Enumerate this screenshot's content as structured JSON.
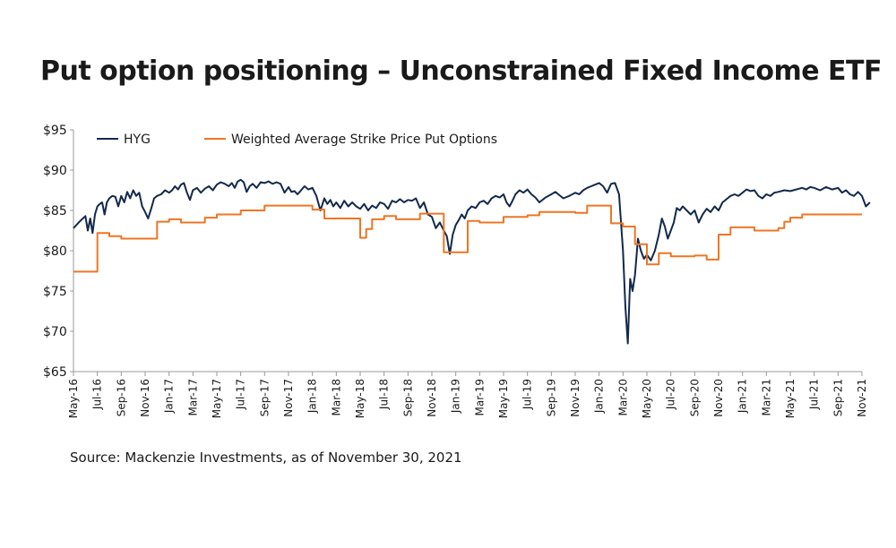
{
  "title": "Put option positioning – Unconstrained Fixed Income ETF",
  "source": "Source: Mackenzie Investments, as of November 30, 2021",
  "chart_data": {
    "type": "line",
    "title": "Put option positioning – Unconstrained Fixed Income ETF",
    "xlabel": "",
    "ylabel": "",
    "ylim": [
      65,
      95
    ],
    "y_ticks": [
      "$95",
      "$90",
      "$85",
      "$80",
      "$75",
      "$70",
      "$65"
    ],
    "y_tick_values": [
      95,
      90,
      85,
      80,
      75,
      70,
      65
    ],
    "x_ticks": [
      "May-16",
      "Jul-16",
      "Sep-16",
      "Nov-16",
      "Jan-17",
      "Mar-17",
      "May-17",
      "Jul-17",
      "Sep-17",
      "Nov-17",
      "Jan-18",
      "Mar-18",
      "May-18",
      "Jul-18",
      "Sep-18",
      "Nov-18",
      "Jan-19",
      "Mar-19",
      "May-19",
      "Jul-19",
      "Sep-19",
      "Nov-19",
      "Jan-20",
      "Mar-20",
      "May-20",
      "Jul-20",
      "Sep-20",
      "Nov-20",
      "Jan-21",
      "Mar-21",
      "May-21",
      "Jul-21",
      "Sep-21",
      "Nov-21"
    ],
    "legend_position": "top-left",
    "grid": false,
    "colors": {
      "HYG": "#13294b",
      "Weighted Average Strike Price Put Options": "#ee7623"
    },
    "series": [
      {
        "name": "HYG",
        "style": "line",
        "points": [
          [
            "May-16",
            82.8
          ],
          [
            "May-16",
            83.6
          ],
          [
            "Jun-16",
            84.3
          ],
          [
            "Jun-16",
            82.5
          ],
          [
            "Jun-16",
            84.0
          ],
          [
            "Jun-16",
            82.2
          ],
          [
            "Jun-16",
            84.5
          ],
          [
            "Jul-16",
            85.5
          ],
          [
            "Jul-16",
            85.8
          ],
          [
            "Jul-16",
            86.0
          ],
          [
            "Jul-16",
            84.5
          ],
          [
            "Jul-16",
            86.0
          ],
          [
            "Aug-16",
            86.5
          ],
          [
            "Aug-16",
            86.8
          ],
          [
            "Aug-16",
            86.7
          ],
          [
            "Aug-16",
            85.5
          ],
          [
            "Sep-16",
            86.8
          ],
          [
            "Sep-16",
            86.0
          ],
          [
            "Sep-16",
            87.3
          ],
          [
            "Sep-16",
            86.5
          ],
          [
            "Oct-16",
            87.5
          ],
          [
            "Oct-16",
            86.8
          ],
          [
            "Oct-16",
            87.2
          ],
          [
            "Oct-16",
            85.5
          ],
          [
            "Nov-16",
            84.8
          ],
          [
            "Nov-16",
            84.0
          ],
          [
            "Nov-16",
            85.2
          ],
          [
            "Nov-16",
            86.5
          ],
          [
            "Dec-16",
            86.8
          ],
          [
            "Dec-16",
            87.0
          ],
          [
            "Dec-16",
            87.5
          ],
          [
            "Jan-17",
            87.2
          ],
          [
            "Jan-17",
            87.5
          ],
          [
            "Jan-17",
            88.0
          ],
          [
            "Jan-17",
            87.6
          ],
          [
            "Feb-17",
            88.2
          ],
          [
            "Feb-17",
            88.4
          ],
          [
            "Feb-17",
            87.2
          ],
          [
            "Feb-17",
            86.3
          ],
          [
            "Mar-17",
            87.5
          ],
          [
            "Mar-17",
            87.8
          ],
          [
            "Mar-17",
            87.2
          ],
          [
            "Apr-17",
            87.7
          ],
          [
            "Apr-17",
            88.0
          ],
          [
            "Apr-17",
            87.5
          ],
          [
            "May-17",
            88.2
          ],
          [
            "May-17",
            88.5
          ],
          [
            "May-17",
            88.3
          ],
          [
            "Jun-17",
            88.0
          ],
          [
            "Jun-17",
            88.4
          ],
          [
            "Jun-17",
            87.8
          ],
          [
            "Jun-17",
            88.6
          ],
          [
            "Jul-17",
            88.8
          ],
          [
            "Jul-17",
            88.5
          ],
          [
            "Jul-17",
            87.3
          ],
          [
            "Jul-17",
            88.0
          ],
          [
            "Aug-17",
            88.3
          ],
          [
            "Aug-17",
            87.8
          ],
          [
            "Aug-17",
            88.5
          ],
          [
            "Sep-17",
            88.4
          ],
          [
            "Sep-17",
            88.6
          ],
          [
            "Sep-17",
            88.3
          ],
          [
            "Oct-17",
            88.5
          ],
          [
            "Oct-17",
            88.3
          ],
          [
            "Oct-17",
            87.2
          ],
          [
            "Nov-17",
            87.9
          ],
          [
            "Nov-17",
            87.3
          ],
          [
            "Nov-17",
            87.4
          ],
          [
            "Nov-17",
            87.0
          ],
          [
            "Dec-17",
            87.4
          ],
          [
            "Dec-17",
            88.0
          ],
          [
            "Dec-17",
            87.6
          ],
          [
            "Jan-18",
            87.8
          ],
          [
            "Jan-18",
            86.8
          ],
          [
            "Jan-18",
            85.0
          ],
          [
            "Feb-18",
            86.5
          ],
          [
            "Feb-18",
            85.8
          ],
          [
            "Feb-18",
            86.3
          ],
          [
            "Feb-18",
            85.5
          ],
          [
            "Mar-18",
            86.0
          ],
          [
            "Mar-18",
            85.3
          ],
          [
            "Mar-18",
            86.2
          ],
          [
            "Apr-18",
            85.5
          ],
          [
            "Apr-18",
            86.0
          ],
          [
            "Apr-18",
            85.5
          ],
          [
            "May-18",
            85.2
          ],
          [
            "May-18",
            85.8
          ],
          [
            "May-18",
            85.0
          ],
          [
            "Jun-18",
            85.6
          ],
          [
            "Jun-18",
            85.3
          ],
          [
            "Jun-18",
            86.0
          ],
          [
            "Jul-18",
            85.8
          ],
          [
            "Jul-18",
            85.2
          ],
          [
            "Jul-18",
            86.2
          ],
          [
            "Aug-18",
            86.0
          ],
          [
            "Aug-18",
            86.4
          ],
          [
            "Aug-18",
            86.0
          ],
          [
            "Sep-18",
            86.3
          ],
          [
            "Sep-18",
            86.2
          ],
          [
            "Sep-18",
            86.5
          ],
          [
            "Oct-18",
            85.3
          ],
          [
            "Oct-18",
            86.0
          ],
          [
            "Oct-18",
            84.5
          ],
          [
            "Nov-18",
            84.2
          ],
          [
            "Nov-18",
            82.8
          ],
          [
            "Nov-18",
            83.5
          ],
          [
            "Dec-18",
            82.5
          ],
          [
            "Dec-18",
            81.8
          ],
          [
            "Dec-18",
            79.6
          ],
          [
            "Dec-18",
            82.0
          ],
          [
            "Jan-19",
            83.2
          ],
          [
            "Jan-19",
            83.8
          ],
          [
            "Jan-19",
            84.5
          ],
          [
            "Jan-19",
            84.0
          ],
          [
            "Feb-19",
            85.0
          ],
          [
            "Feb-19",
            85.5
          ],
          [
            "Feb-19",
            85.3
          ],
          [
            "Mar-19",
            86.0
          ],
          [
            "Mar-19",
            86.2
          ],
          [
            "Mar-19",
            85.8
          ],
          [
            "Apr-19",
            86.5
          ],
          [
            "Apr-19",
            86.8
          ],
          [
            "Apr-19",
            86.6
          ],
          [
            "May-19",
            87.0
          ],
          [
            "May-19",
            86.0
          ],
          [
            "May-19",
            85.5
          ],
          [
            "May-19",
            86.2
          ],
          [
            "Jun-19",
            87.0
          ],
          [
            "Jun-19",
            87.5
          ],
          [
            "Jun-19",
            87.2
          ],
          [
            "Jul-19",
            87.6
          ],
          [
            "Jul-19",
            87.0
          ],
          [
            "Jul-19",
            86.6
          ],
          [
            "Aug-19",
            86.0
          ],
          [
            "Aug-19",
            86.6
          ],
          [
            "Sep-19",
            87.0
          ],
          [
            "Sep-19",
            87.3
          ],
          [
            "Sep-19",
            86.9
          ],
          [
            "Oct-19",
            86.5
          ],
          [
            "Oct-19",
            86.8
          ],
          [
            "Nov-19",
            87.2
          ],
          [
            "Nov-19",
            87.0
          ],
          [
            "Nov-19",
            87.5
          ],
          [
            "Dec-19",
            87.8
          ],
          [
            "Dec-19",
            88.0
          ],
          [
            "Dec-19",
            88.2
          ],
          [
            "Jan-20",
            88.4
          ],
          [
            "Jan-20",
            88.0
          ],
          [
            "Jan-20",
            87.2
          ],
          [
            "Feb-20",
            88.3
          ],
          [
            "Feb-20",
            88.4
          ],
          [
            "Feb-20",
            87.0
          ],
          [
            "Mar-20",
            80.0
          ],
          [
            "Mar-20",
            73.0
          ],
          [
            "Mar-20",
            68.5
          ],
          [
            "Mar-20",
            76.5
          ],
          [
            "Mar-20",
            75.0
          ],
          [
            "Apr-20",
            77.0
          ],
          [
            "Apr-20",
            81.5
          ],
          [
            "Apr-20",
            80.0
          ],
          [
            "Apr-20",
            79.0
          ],
          [
            "May-20",
            79.5
          ],
          [
            "May-20",
            78.8
          ],
          [
            "May-20",
            80.0
          ],
          [
            "Jun-20",
            82.0
          ],
          [
            "Jun-20",
            84.0
          ],
          [
            "Jun-20",
            83.0
          ],
          [
            "Jun-20",
            81.5
          ],
          [
            "Jul-20",
            82.5
          ],
          [
            "Jul-20",
            83.5
          ],
          [
            "Jul-20",
            85.3
          ],
          [
            "Jul-20",
            85.0
          ],
          [
            "Aug-20",
            85.5
          ],
          [
            "Aug-20",
            85.0
          ],
          [
            "Aug-20",
            84.5
          ],
          [
            "Sep-20",
            85.0
          ],
          [
            "Sep-20",
            83.5
          ],
          [
            "Sep-20",
            84.5
          ],
          [
            "Oct-20",
            85.2
          ],
          [
            "Oct-20",
            84.8
          ],
          [
            "Oct-20",
            85.5
          ],
          [
            "Nov-20",
            85.0
          ],
          [
            "Nov-20",
            86.0
          ],
          [
            "Nov-20",
            86.4
          ],
          [
            "Dec-20",
            86.8
          ],
          [
            "Dec-20",
            87.0
          ],
          [
            "Dec-20",
            86.8
          ],
          [
            "Jan-21",
            87.2
          ],
          [
            "Jan-21",
            87.6
          ],
          [
            "Jan-21",
            87.4
          ],
          [
            "Feb-21",
            87.5
          ],
          [
            "Feb-21",
            86.8
          ],
          [
            "Feb-21",
            86.5
          ],
          [
            "Mar-21",
            87.0
          ],
          [
            "Mar-21",
            86.8
          ],
          [
            "Mar-21",
            87.2
          ],
          [
            "Apr-21",
            87.3
          ],
          [
            "Apr-21",
            87.5
          ],
          [
            "May-21",
            87.4
          ],
          [
            "May-21",
            87.6
          ],
          [
            "Jun-21",
            87.8
          ],
          [
            "Jun-21",
            87.6
          ],
          [
            "Jun-21",
            87.9
          ],
          [
            "Jul-21",
            87.8
          ],
          [
            "Jul-21",
            87.5
          ],
          [
            "Aug-21",
            87.9
          ],
          [
            "Aug-21",
            87.6
          ],
          [
            "Sep-21",
            87.8
          ],
          [
            "Sep-21",
            87.2
          ],
          [
            "Sep-21",
            87.5
          ],
          [
            "Oct-21",
            87.0
          ],
          [
            "Oct-21",
            86.8
          ],
          [
            "Oct-21",
            87.3
          ],
          [
            "Nov-21",
            86.8
          ],
          [
            "Nov-21",
            85.5
          ],
          [
            "Nov-21",
            86.0
          ]
        ]
      },
      {
        "name": "Weighted Average Strike Price Put Options",
        "style": "step",
        "points": [
          [
            "May-16",
            77.4
          ],
          [
            "Jul-16",
            82.2
          ],
          [
            "Aug-16",
            81.8
          ],
          [
            "Sep-16",
            81.5
          ],
          [
            "Dec-16",
            83.6
          ],
          [
            "Jan-17",
            83.9
          ],
          [
            "Feb-17",
            83.5
          ],
          [
            "Apr-17",
            84.1
          ],
          [
            "May-17",
            84.5
          ],
          [
            "Jul-17",
            85.0
          ],
          [
            "Sep-17",
            85.6
          ],
          [
            "Jan-18",
            85.1
          ],
          [
            "Feb-18",
            84.0
          ],
          [
            "May-18",
            81.6
          ],
          [
            "May-18",
            82.7
          ],
          [
            "Jun-18",
            83.9
          ],
          [
            "Jul-18",
            84.3
          ],
          [
            "Aug-18",
            83.9
          ],
          [
            "Oct-18",
            84.6
          ],
          [
            "Dec-18",
            79.8
          ],
          [
            "Feb-19",
            83.7
          ],
          [
            "Mar-19",
            83.5
          ],
          [
            "May-19",
            84.2
          ],
          [
            "Jul-19",
            84.4
          ],
          [
            "Aug-19",
            84.8
          ],
          [
            "Nov-19",
            84.7
          ],
          [
            "Dec-19",
            85.6
          ],
          [
            "Feb-20",
            83.4
          ],
          [
            "Mar-20",
            83.0
          ],
          [
            "Apr-20",
            80.8
          ],
          [
            "May-20",
            78.3
          ],
          [
            "Jun-20",
            79.7
          ],
          [
            "Jul-20",
            79.3
          ],
          [
            "Sep-20",
            79.4
          ],
          [
            "Oct-20",
            78.9
          ],
          [
            "Nov-20",
            82.0
          ],
          [
            "Dec-20",
            82.9
          ],
          [
            "Feb-21",
            82.5
          ],
          [
            "Apr-21",
            82.8
          ],
          [
            "Apr-21",
            83.6
          ],
          [
            "May-21",
            84.1
          ],
          [
            "Jun-21",
            84.5
          ],
          [
            "Nov-21",
            84.5
          ]
        ]
      }
    ]
  }
}
